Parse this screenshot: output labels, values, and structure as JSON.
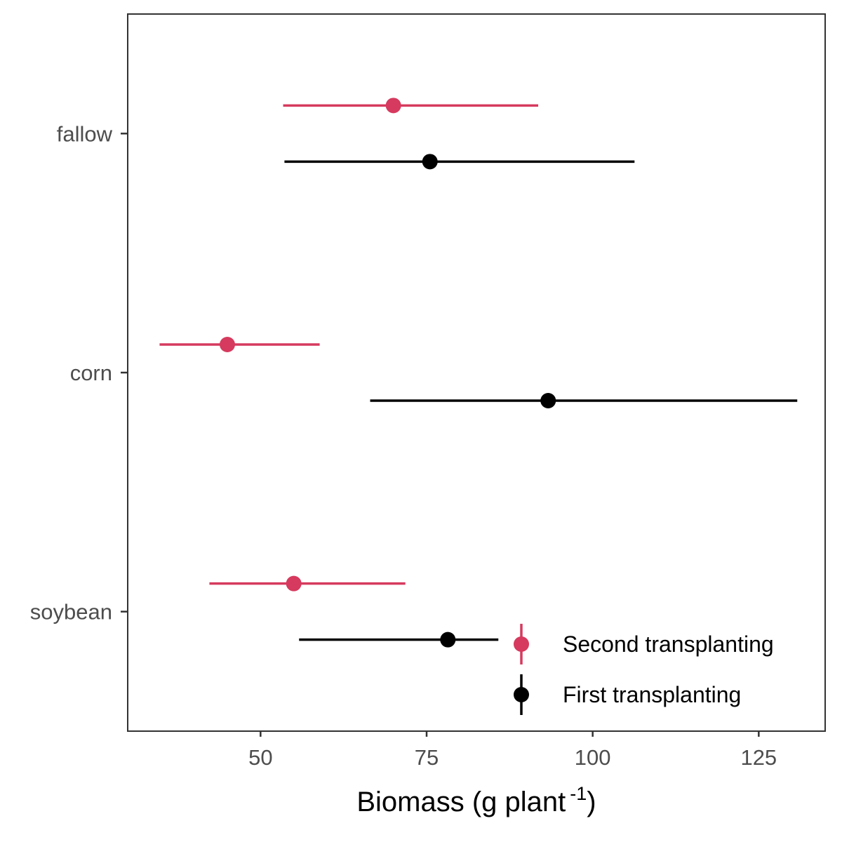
{
  "chart_data": {
    "type": "scatter",
    "orientation": "horizontal",
    "title": "",
    "xlabel": "Biomass (g plant",
    "xlabel_superscript": "-1",
    "xlabel_close": ")",
    "ylabel": "",
    "xlim": [
      30,
      135
    ],
    "xticks": [
      50,
      75,
      100,
      125
    ],
    "xtick_labels": [
      "50",
      "75",
      "100",
      "125"
    ],
    "categories": [
      "fallow",
      "corn",
      "soybean"
    ],
    "grid": false,
    "legend_position": "bottom-right",
    "series": [
      {
        "name": "Second transplanting",
        "color": "#d63a5e",
        "points": [
          {
            "category": "fallow",
            "x": 70.0,
            "lower": 53.4,
            "upper": 91.8
          },
          {
            "category": "corn",
            "x": 45.0,
            "lower": 34.8,
            "upper": 58.9
          },
          {
            "category": "soybean",
            "x": 55.0,
            "lower": 42.3,
            "upper": 71.8
          }
        ]
      },
      {
        "name": "First transplanting",
        "color": "#000000",
        "points": [
          {
            "category": "fallow",
            "x": 75.5,
            "lower": 53.6,
            "upper": 106.3
          },
          {
            "category": "corn",
            "x": 93.3,
            "lower": 66.5,
            "upper": 130.8
          },
          {
            "category": "soybean",
            "x": 78.2,
            "lower": 55.8,
            "upper": 85.8
          }
        ]
      }
    ]
  }
}
